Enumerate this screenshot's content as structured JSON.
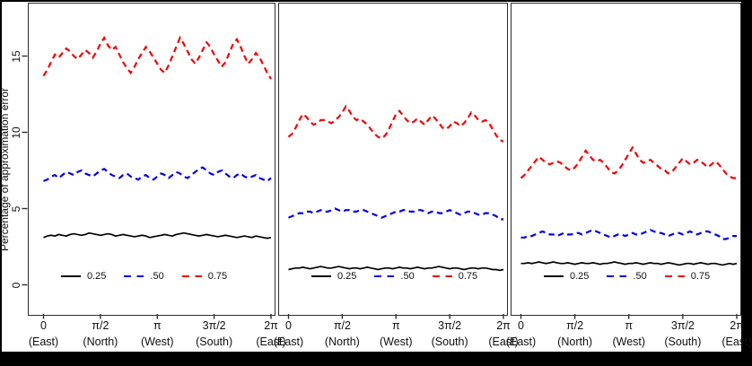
{
  "figure": {
    "y_axis": {
      "title": "Percentage of approximation error",
      "ticks": [
        "0",
        "5",
        "10",
        "15"
      ],
      "tick_values": [
        0,
        5,
        10,
        15
      ]
    },
    "x_axis": {
      "tick_labels": [
        "0",
        "π/2",
        "π",
        "3π/2",
        "2π"
      ],
      "direction_labels": [
        "(East)",
        "(North)",
        "(West)",
        "(South)",
        "(East)"
      ]
    },
    "legend": {
      "items": [
        {
          "label": "0.25",
          "color": "#000000",
          "style": "solid"
        },
        {
          "label": ".50",
          "color": "#0000ee",
          "style": "dashed"
        },
        {
          "label": "0.75",
          "color": "#f50000",
          "style": "dashed"
        }
      ]
    }
  },
  "chart_data": [
    {
      "type": "line",
      "panel": "left",
      "xlabel_ticks": [
        "0",
        "π/2",
        "π",
        "3π/2",
        "2π"
      ],
      "x_range": [
        0,
        6.2832
      ],
      "ylim": [
        -2,
        18.5
      ],
      "grid": false,
      "legend_position": "bottom-inside",
      "series": [
        {
          "name": "0.25",
          "color": "#000000",
          "style": "solid",
          "values": [
            3.1,
            3.2,
            3.25,
            3.2,
            3.3,
            3.25,
            3.2,
            3.3,
            3.35,
            3.3,
            3.25,
            3.3,
            3.4,
            3.35,
            3.3,
            3.25,
            3.3,
            3.35,
            3.3,
            3.2,
            3.25,
            3.3,
            3.25,
            3.2,
            3.15,
            3.2,
            3.25,
            3.2,
            3.1,
            3.15,
            3.2,
            3.25,
            3.3,
            3.25,
            3.2,
            3.3,
            3.35,
            3.4,
            3.35,
            3.3,
            3.25,
            3.2,
            3.25,
            3.3,
            3.25,
            3.2,
            3.15,
            3.2,
            3.25,
            3.2,
            3.15,
            3.1,
            3.15,
            3.2,
            3.15,
            3.1,
            3.2,
            3.15,
            3.1,
            3.05,
            3.1
          ]
        },
        {
          "name": ".50",
          "color": "#0000ee",
          "style": "dashed",
          "values": [
            6.8,
            6.9,
            7.1,
            7.2,
            7.0,
            7.2,
            7.4,
            7.3,
            7.2,
            7.4,
            7.5,
            7.3,
            7.2,
            7.1,
            7.3,
            7.5,
            7.6,
            7.4,
            7.2,
            7.1,
            7.0,
            7.2,
            7.3,
            7.1,
            7.0,
            6.9,
            7.1,
            7.2,
            7.0,
            6.9,
            7.1,
            7.3,
            7.2,
            7.0,
            7.2,
            7.4,
            7.3,
            7.1,
            7.0,
            7.2,
            7.4,
            7.6,
            7.7,
            7.5,
            7.3,
            7.2,
            7.4,
            7.5,
            7.3,
            7.1,
            7.0,
            7.2,
            7.3,
            7.1,
            7.0,
            7.1,
            7.2,
            7.0,
            6.9,
            6.8,
            7.0
          ]
        },
        {
          "name": "0.75",
          "color": "#f50000",
          "style": "dashed",
          "values": [
            13.7,
            14.1,
            14.6,
            15.1,
            14.9,
            15.2,
            15.5,
            15.3,
            15.0,
            14.8,
            15.1,
            15.4,
            15.2,
            14.9,
            15.3,
            15.8,
            16.2,
            15.7,
            15.4,
            15.6,
            15.1,
            14.6,
            14.2,
            13.9,
            14.3,
            14.8,
            15.2,
            15.6,
            15.3,
            14.9,
            14.5,
            14.1,
            13.9,
            14.4,
            15.0,
            15.6,
            16.2,
            15.8,
            15.3,
            14.8,
            14.5,
            14.9,
            15.4,
            15.9,
            15.6,
            15.1,
            14.7,
            14.3,
            14.6,
            15.2,
            15.8,
            16.1,
            15.6,
            15.0,
            14.5,
            14.8,
            15.2,
            14.9,
            14.4,
            13.9,
            13.5
          ]
        }
      ]
    },
    {
      "type": "line",
      "panel": "middle",
      "xlabel_ticks": [
        "0",
        "π/2",
        "π",
        "3π/2",
        "2π"
      ],
      "x_range": [
        0,
        6.2832
      ],
      "ylim": [
        -2,
        18.5
      ],
      "grid": false,
      "legend_position": "bottom-inside",
      "series": [
        {
          "name": "0.25",
          "color": "#000000",
          "style": "solid",
          "values": [
            1.0,
            1.05,
            1.1,
            1.1,
            1.15,
            1.1,
            1.05,
            1.1,
            1.15,
            1.2,
            1.15,
            1.1,
            1.1,
            1.15,
            1.2,
            1.15,
            1.1,
            1.05,
            1.1,
            1.1,
            1.05,
            1.1,
            1.15,
            1.1,
            1.05,
            1.0,
            1.05,
            1.1,
            1.1,
            1.05,
            1.1,
            1.15,
            1.1,
            1.1,
            1.05,
            1.1,
            1.15,
            1.1,
            1.05,
            1.1,
            1.1,
            1.15,
            1.2,
            1.15,
            1.1,
            1.05,
            1.1,
            1.1,
            1.05,
            1.0,
            1.05,
            1.1,
            1.1,
            1.05,
            1.1,
            1.1,
            1.05,
            1.0,
            1.0,
            0.95,
            1.0
          ]
        },
        {
          "name": ".50",
          "color": "#0000ee",
          "style": "dashed",
          "values": [
            4.4,
            4.5,
            4.6,
            4.7,
            4.7,
            4.8,
            4.8,
            4.7,
            4.8,
            4.9,
            4.8,
            4.8,
            4.9,
            5.0,
            4.9,
            4.8,
            4.9,
            4.9,
            4.8,
            4.8,
            4.9,
            4.9,
            4.8,
            4.7,
            4.6,
            4.5,
            4.4,
            4.5,
            4.6,
            4.7,
            4.8,
            4.8,
            4.9,
            4.9,
            4.8,
            4.8,
            4.9,
            4.9,
            4.8,
            4.7,
            4.8,
            4.8,
            4.7,
            4.7,
            4.8,
            4.9,
            4.8,
            4.7,
            4.6,
            4.7,
            4.8,
            4.8,
            4.7,
            4.6,
            4.6,
            4.7,
            4.7,
            4.6,
            4.5,
            4.3,
            4.3
          ]
        },
        {
          "name": "0.75",
          "color": "#f50000",
          "style": "dashed",
          "values": [
            9.7,
            9.9,
            10.3,
            10.8,
            11.2,
            11.0,
            10.7,
            10.5,
            10.6,
            10.8,
            10.8,
            10.7,
            10.6,
            10.8,
            11.0,
            11.3,
            11.7,
            11.4,
            11.0,
            10.8,
            10.9,
            10.7,
            10.5,
            10.2,
            9.9,
            9.7,
            9.6,
            9.8,
            10.2,
            10.7,
            11.2,
            11.4,
            11.1,
            10.8,
            10.6,
            10.7,
            10.9,
            10.7,
            10.5,
            10.8,
            11.1,
            10.9,
            10.6,
            10.3,
            10.2,
            10.4,
            10.7,
            10.6,
            10.4,
            10.6,
            10.9,
            11.3,
            11.1,
            10.8,
            10.7,
            10.8,
            10.6,
            10.2,
            9.8,
            9.5,
            9.4
          ]
        }
      ]
    },
    {
      "type": "line",
      "panel": "right",
      "xlabel_ticks": [
        "0",
        "π/2",
        "π",
        "3π/2",
        "2π"
      ],
      "x_range": [
        0,
        6.2832
      ],
      "ylim": [
        -2,
        18.5
      ],
      "grid": false,
      "legend_position": "bottom-inside",
      "series": [
        {
          "name": "0.25",
          "color": "#000000",
          "style": "solid",
          "values": [
            1.4,
            1.4,
            1.45,
            1.4,
            1.45,
            1.5,
            1.45,
            1.4,
            1.45,
            1.5,
            1.45,
            1.4,
            1.4,
            1.45,
            1.4,
            1.35,
            1.4,
            1.45,
            1.4,
            1.4,
            1.45,
            1.4,
            1.35,
            1.4,
            1.4,
            1.45,
            1.5,
            1.45,
            1.4,
            1.35,
            1.4,
            1.4,
            1.45,
            1.4,
            1.35,
            1.4,
            1.45,
            1.4,
            1.4,
            1.35,
            1.4,
            1.45,
            1.4,
            1.35,
            1.3,
            1.35,
            1.4,
            1.4,
            1.35,
            1.4,
            1.45,
            1.4,
            1.35,
            1.4,
            1.4,
            1.35,
            1.3,
            1.35,
            1.4,
            1.35,
            1.4
          ]
        },
        {
          "name": ".50",
          "color": "#0000ee",
          "style": "dashed",
          "values": [
            3.1,
            3.1,
            3.2,
            3.2,
            3.3,
            3.4,
            3.5,
            3.4,
            3.3,
            3.3,
            3.2,
            3.3,
            3.4,
            3.3,
            3.3,
            3.4,
            3.4,
            3.3,
            3.4,
            3.5,
            3.6,
            3.5,
            3.4,
            3.3,
            3.2,
            3.1,
            3.2,
            3.3,
            3.3,
            3.2,
            3.3,
            3.4,
            3.3,
            3.3,
            3.4,
            3.5,
            3.6,
            3.5,
            3.4,
            3.4,
            3.3,
            3.2,
            3.3,
            3.4,
            3.4,
            3.3,
            3.4,
            3.5,
            3.4,
            3.3,
            3.4,
            3.5,
            3.5,
            3.4,
            3.3,
            3.2,
            3.0,
            3.0,
            3.1,
            3.2,
            3.2
          ]
        },
        {
          "name": "0.75",
          "color": "#f50000",
          "style": "dashed",
          "values": [
            7.0,
            7.2,
            7.5,
            7.8,
            8.1,
            8.4,
            8.2,
            8.0,
            7.9,
            8.0,
            8.1,
            8.0,
            7.8,
            7.6,
            7.5,
            7.7,
            8.0,
            8.4,
            8.8,
            8.5,
            8.2,
            8.1,
            8.2,
            8.0,
            7.7,
            7.4,
            7.3,
            7.5,
            7.8,
            8.2,
            8.6,
            9.0,
            8.6,
            8.2,
            8.0,
            8.1,
            8.2,
            8.0,
            7.8,
            7.6,
            7.5,
            7.3,
            7.4,
            7.7,
            8.0,
            8.3,
            8.1,
            7.9,
            8.0,
            8.2,
            8.1,
            7.9,
            7.7,
            7.9,
            8.1,
            7.9,
            7.6,
            7.3,
            7.1,
            7.0,
            7.0
          ]
        }
      ]
    }
  ]
}
